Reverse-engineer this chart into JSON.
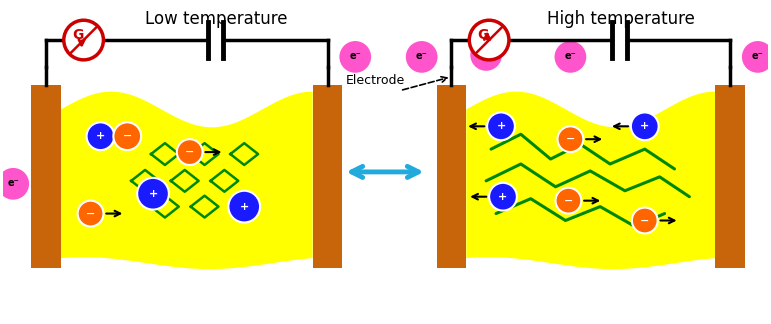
{
  "fig_width": 7.71,
  "fig_height": 3.24,
  "bg_color": "#ffffff",
  "electrode_color": "#c8640a",
  "gel_color": "#ffff00",
  "plus_ion_color": "#1a1aff",
  "minus_ion_color": "#ff6600",
  "electron_color": "#ff55cc",
  "circuit_color": "#000000",
  "G_color": "#cc0000",
  "polymer_color": "#008800",
  "arrow_color": "#22aadd",
  "low_temp_label": "Low temperature",
  "high_temp_label": "High temperature",
  "electrode_label": "Electrode"
}
